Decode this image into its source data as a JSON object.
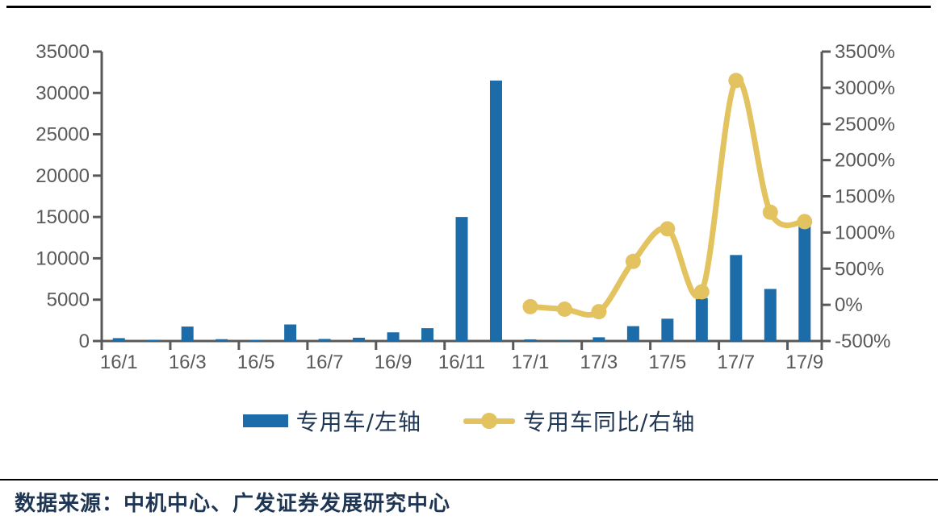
{
  "chart_data": {
    "type": "bar",
    "subtype": "dual-axis bar + smoothed line",
    "categories": [
      "16/1",
      "16/2",
      "16/3",
      "16/4",
      "16/5",
      "16/6",
      "16/7",
      "16/8",
      "16/9",
      "16/10",
      "16/11",
      "16/12",
      "17/1",
      "17/2",
      "17/3",
      "17/4",
      "17/5",
      "17/6",
      "17/7",
      "17/8",
      "17/9"
    ],
    "x_tick_labels": [
      "16/1",
      "16/3",
      "16/5",
      "16/7",
      "16/9",
      "16/11",
      "17/1",
      "17/3",
      "17/5",
      "17/7",
      "17/9"
    ],
    "series": [
      {
        "name": "专用车/左轴",
        "type": "bar",
        "axis": "left",
        "color": "#1B6CA8",
        "values": [
          350,
          150,
          1750,
          220,
          130,
          2000,
          250,
          400,
          1050,
          1550,
          15000,
          31500,
          200,
          50,
          450,
          1800,
          2700,
          5200,
          10400,
          6300,
          13900
        ]
      },
      {
        "name": "专用车同比/右轴",
        "type": "line",
        "axis": "right",
        "color": "#E3C35F",
        "values": [
          null,
          null,
          null,
          null,
          null,
          null,
          null,
          null,
          null,
          null,
          null,
          null,
          -25,
          -60,
          -95,
          600,
          1050,
          180,
          3100,
          1280,
          1150
        ]
      }
    ],
    "left_axis": {
      "min": 0,
      "max": 35000,
      "step": 5000,
      "tick_labels": [
        "0",
        "5000",
        "10000",
        "15000",
        "20000",
        "25000",
        "30000",
        "35000"
      ]
    },
    "right_axis": {
      "min": -500,
      "max": 3500,
      "step": 500,
      "tick_labels": [
        "-500%",
        "0%",
        "500%",
        "1000%",
        "1500%",
        "2000%",
        "2500%",
        "3000%",
        "3500%"
      ]
    },
    "grid": false,
    "legend_position": "bottom",
    "title": "",
    "axis_color": "#595959",
    "tick_label_color": "#595959"
  },
  "footer": {
    "source_text": "数据来源：中机中心、广发证券发展研究中心"
  }
}
